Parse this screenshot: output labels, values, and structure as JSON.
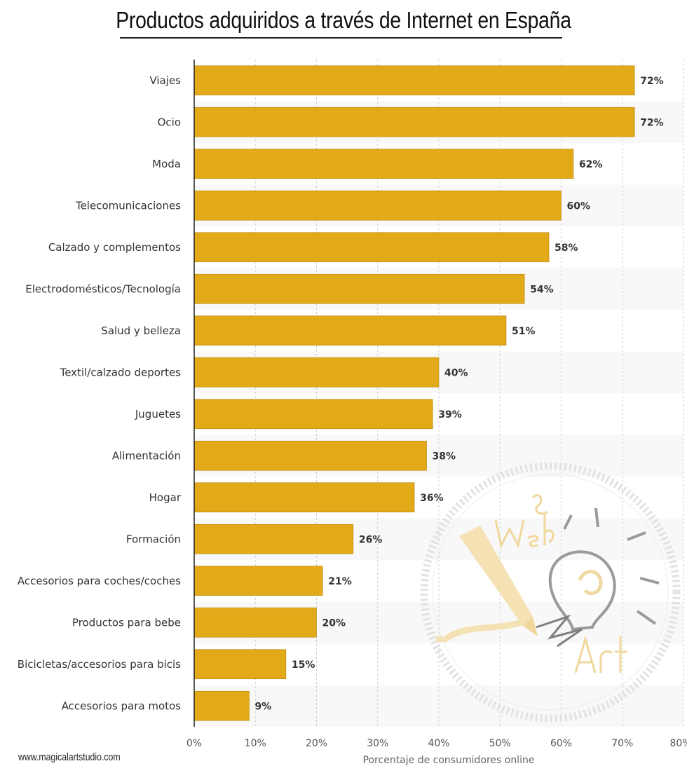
{
  "title": "Productos adquiridos a través de Internet en España",
  "footer": "www.magicalartstudio.com",
  "colors": {
    "bar": "#e2a918",
    "bar_stroke": "#b8870f",
    "band": "#f8f8f8",
    "grid": "#cfcfcf"
  },
  "chart_data": {
    "type": "bar",
    "orientation": "horizontal",
    "xlabel": "Porcentaje de consumidores online",
    "ylabel": "",
    "xlim": [
      0,
      80
    ],
    "x_ticks": [
      "0%",
      "10%",
      "20%",
      "30%",
      "40%",
      "50%",
      "60%",
      "70%",
      "80%"
    ],
    "grid": true,
    "categories": [
      "Viajes",
      "Ocio",
      "Moda",
      "Telecomunicaciones",
      "Calzado y complementos",
      "Electrodomésticos/Tecnología",
      "Salud y belleza",
      "Textil/calzado deportes",
      "Juguetes",
      "Alimentación",
      "Hogar",
      "Formación",
      "Accesorios para coches/coches",
      "Productos para bebe",
      "Bicicletas/accesorios para bicis",
      "Accesorios para motos"
    ],
    "values": [
      72,
      72,
      62,
      60,
      58,
      54,
      51,
      40,
      39,
      38,
      36,
      26,
      21,
      20,
      15,
      9
    ],
    "value_labels": [
      "72%",
      "72%",
      "62%",
      "60%",
      "58%",
      "54%",
      "51%",
      "40%",
      "39%",
      "38%",
      "36%",
      "26%",
      "21%",
      "20%",
      "15%",
      "9%"
    ]
  }
}
